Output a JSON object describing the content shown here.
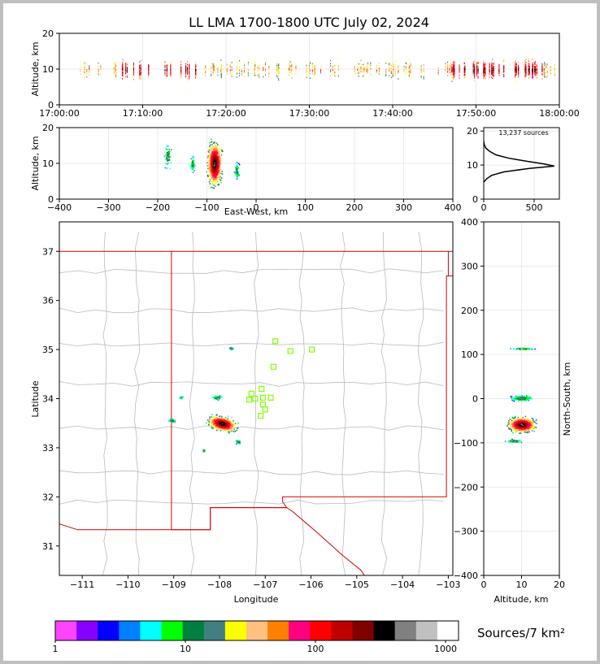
{
  "chart_data": [
    {
      "type": "scatter",
      "panel": "altitude-time",
      "title": "LL LMA 1700-1800 UTC July 02, 2024",
      "xlabel": "",
      "ylabel": "Altitude, km",
      "xlim": [
        "17:00:00",
        "18:00:00"
      ],
      "ylim": [
        0,
        20
      ],
      "xticks": [
        "17:00:00",
        "17:10:00",
        "17:20:00",
        "17:30:00",
        "17:40:00",
        "17:50:00",
        "18:00:00"
      ],
      "yticks": [
        0,
        10,
        20
      ],
      "grid": true,
      "description_points": "dense vertical streaks of sources between 5 and 17 km altitude throughout the hour, densest 17:08-17:16 and 17:48-17:58"
    },
    {
      "type": "scatter",
      "panel": "altitude-eastwest",
      "xlabel": "East-West, km",
      "ylabel": "Altitude, km",
      "xlim": [
        -400,
        400
      ],
      "ylim": [
        0,
        20
      ],
      "xticks": [
        -400,
        -300,
        -200,
        -100,
        0,
        100,
        200,
        300,
        400
      ],
      "yticks": [
        0,
        10,
        20
      ],
      "grid": true,
      "clusters": [
        {
          "x": -85,
          "y": 10,
          "spread_x": 12,
          "spread_y": 5
        },
        {
          "x": -180,
          "y": 12,
          "spread_x": 6,
          "spread_y": 4
        },
        {
          "x": -130,
          "y": 10,
          "spread_x": 4,
          "spread_y": 2
        },
        {
          "x": -40,
          "y": 8,
          "spread_x": 4,
          "spread_y": 2
        }
      ]
    },
    {
      "type": "line",
      "panel": "altitude-histogram",
      "annotation": "13,237 sources",
      "xlim": [
        0,
        750
      ],
      "ylim": [
        0,
        21
      ],
      "xticks": [
        0,
        500
      ],
      "yticks": [
        0,
        10,
        20
      ],
      "profile": [
        [
          0,
          5
        ],
        [
          30,
          6
        ],
        [
          80,
          7
        ],
        [
          200,
          8
        ],
        [
          450,
          9
        ],
        [
          700,
          9.7
        ],
        [
          600,
          10.3
        ],
        [
          450,
          11
        ],
        [
          250,
          12
        ],
        [
          120,
          13
        ],
        [
          60,
          14
        ],
        [
          20,
          15
        ],
        [
          5,
          16
        ],
        [
          0,
          17
        ]
      ]
    },
    {
      "type": "scatter",
      "panel": "plan-view",
      "xlabel": "Longitude",
      "ylabel": "Latitude",
      "xlim": [
        -111.5,
        -102.9
      ],
      "ylim": [
        30.4,
        37.6
      ],
      "xticks": [
        -111,
        -110,
        -109,
        -108,
        -107,
        -106,
        -105,
        -104,
        -103
      ],
      "yticks": [
        31,
        32,
        33,
        34,
        35,
        36,
        37
      ],
      "stations": [
        {
          "lon": -106.78,
          "lat": 35.17
        },
        {
          "lon": -106.45,
          "lat": 34.97
        },
        {
          "lon": -105.98,
          "lat": 35.0
        },
        {
          "lon": -106.82,
          "lat": 34.65
        },
        {
          "lon": -107.08,
          "lat": 34.2
        },
        {
          "lon": -107.3,
          "lat": 34.1
        },
        {
          "lon": -107.35,
          "lat": 33.98
        },
        {
          "lon": -107.22,
          "lat": 34.0
        },
        {
          "lon": -107.05,
          "lat": 34.02
        },
        {
          "lon": -106.88,
          "lat": 34.02
        },
        {
          "lon": -107.05,
          "lat": 33.88
        },
        {
          "lon": -107.0,
          "lat": 33.78
        },
        {
          "lon": -107.1,
          "lat": 33.65
        }
      ],
      "clusters": [
        {
          "lon": -107.95,
          "lat": 33.5,
          "spread_lon": 0.25,
          "spread_lat": 0.12
        },
        {
          "lon": -108.05,
          "lat": 34.03,
          "spread_lon": 0.1,
          "spread_lat": 0.04
        },
        {
          "lon": -108.85,
          "lat": 34.03,
          "spread_lon": 0.03,
          "spread_lat": 0.02
        },
        {
          "lon": -109.05,
          "lat": 33.56,
          "spread_lon": 0.07,
          "spread_lat": 0.03
        },
        {
          "lon": -107.6,
          "lat": 33.13,
          "spread_lon": 0.05,
          "spread_lat": 0.03
        },
        {
          "lon": -107.75,
          "lat": 35.03,
          "spread_lon": 0.04,
          "spread_lat": 0.02
        },
        {
          "lon": -108.35,
          "lat": 32.95,
          "spread_lon": 0.02,
          "spread_lat": 0.02
        }
      ],
      "colors": {
        "state_border": "#d00000",
        "county_border": "#bbbbbb",
        "station": "#7fff00"
      }
    },
    {
      "type": "scatter",
      "panel": "northsouth-altitude",
      "xlabel": "Altitude, km",
      "ylabel": "North-South, km",
      "xlim": [
        0,
        20
      ],
      "ylim": [
        -400,
        400
      ],
      "xticks": [
        0,
        10,
        20
      ],
      "yticks": [
        -400,
        -300,
        -200,
        -100,
        0,
        100,
        200,
        300,
        400
      ],
      "grid": true,
      "clusters": [
        {
          "x": 10,
          "y": -58,
          "spread_x": 5,
          "spread_y": 14
        },
        {
          "x": 10,
          "y": 2,
          "spread_x": 4,
          "spread_y": 5
        },
        {
          "x": 10,
          "y": 114,
          "spread_x": 4,
          "spread_y": 2
        },
        {
          "x": 8,
          "y": -95,
          "spread_x": 3,
          "spread_y": 3
        }
      ]
    },
    {
      "type": "heatmap",
      "panel": "colorbar",
      "label": "Sources/7 km²",
      "tick_labels": [
        "1",
        "10",
        "100",
        "1000"
      ],
      "colors": [
        "#ff44ff",
        "#8800ff",
        "#0000ff",
        "#0080ff",
        "#00ffff",
        "#00ff00",
        "#008040",
        "#408080",
        "#ffff00",
        "#ffc080",
        "#ff8000",
        "#ff0080",
        "#ff0000",
        "#c00000",
        "#800000",
        "#000000",
        "#808080",
        "#c0c0c0",
        "#ffffff"
      ]
    }
  ]
}
